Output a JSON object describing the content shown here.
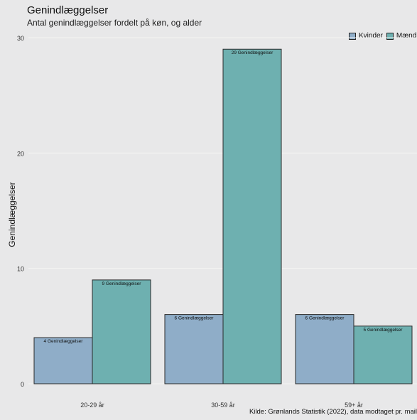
{
  "chart_data": {
    "type": "bar",
    "title": "Genindlæggelser",
    "subtitle": "Antal genindlæggelser fordelt på køn, og alder",
    "ylabel": "Genindlæggelser",
    "xlabel": "",
    "categories": [
      "20-29 år",
      "30-59 år",
      "59+ år"
    ],
    "series": [
      {
        "name": "Kvinder",
        "color": "#8fadc8",
        "values": [
          4,
          6,
          6
        ],
        "labels": [
          "4 Genindlæggelser",
          "6 Genindlæggelser",
          "6 Genindlæggelser"
        ]
      },
      {
        "name": "Mænd",
        "color": "#6eb0b0",
        "values": [
          9,
          29,
          5
        ],
        "labels": [
          "9 Genindlæggelser",
          "29 Genindlæggelser",
          "5 Genindlæggelser"
        ]
      }
    ],
    "ylim": [
      0,
      30
    ],
    "yticks": [
      0,
      10,
      20,
      30
    ],
    "grid": true,
    "legend_position": "top-right",
    "caption": "Kilde: Grønlands Statistik (2022), data modtaget pr. mail"
  }
}
